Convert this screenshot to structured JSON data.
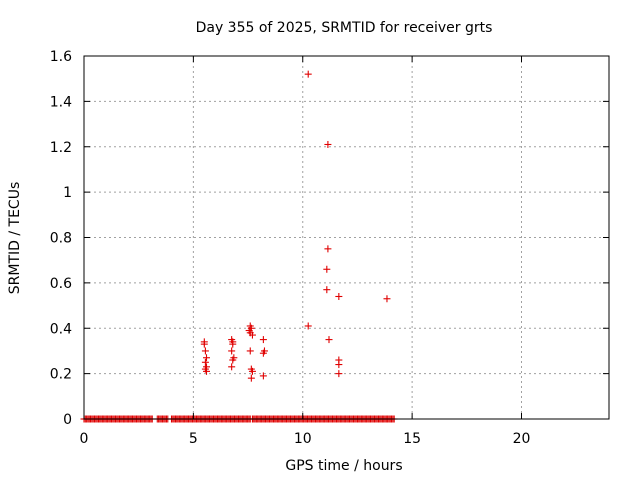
{
  "chart_data": {
    "type": "scatter",
    "title": "Day 355 of 2025, SRMTID for receiver grts",
    "xlabel": "GPS time / hours",
    "ylabel": "SRMTID / TECUs",
    "xlim": [
      0,
      24
    ],
    "ylim": [
      0,
      1.6
    ],
    "xticks": [
      0,
      5,
      10,
      15,
      20
    ],
    "xtick_labels": [
      "0",
      "5",
      "10",
      "15",
      "20"
    ],
    "yticks": [
      0,
      0.2,
      0.4,
      0.6,
      0.8,
      1.0,
      1.2,
      1.4,
      1.6
    ],
    "ytick_labels": [
      "0",
      "0.2",
      "0.4",
      "0.6",
      "0.8",
      "1",
      "1.2",
      "1.4",
      "1.6"
    ],
    "grid": true,
    "marker": "+",
    "color": "#e00000",
    "zero_baseline": {
      "y": 0,
      "segments": [
        [
          0.0,
          3.15
        ],
        [
          3.35,
          3.85
        ],
        [
          4.0,
          7.6
        ],
        [
          7.7,
          14.2
        ]
      ],
      "step": 0.06
    },
    "points": [
      [
        5.5,
        0.34
      ],
      [
        5.5,
        0.33
      ],
      [
        5.55,
        0.3
      ],
      [
        5.6,
        0.27
      ],
      [
        5.55,
        0.25
      ],
      [
        5.6,
        0.23
      ],
      [
        5.55,
        0.22
      ],
      [
        5.6,
        0.21
      ],
      [
        6.75,
        0.35
      ],
      [
        6.8,
        0.34
      ],
      [
        6.8,
        0.33
      ],
      [
        6.75,
        0.3
      ],
      [
        6.85,
        0.27
      ],
      [
        6.8,
        0.26
      ],
      [
        6.75,
        0.23
      ],
      [
        7.6,
        0.41
      ],
      [
        7.65,
        0.4
      ],
      [
        7.55,
        0.39
      ],
      [
        7.6,
        0.38
      ],
      [
        7.7,
        0.37
      ],
      [
        7.6,
        0.3
      ],
      [
        7.65,
        0.22
      ],
      [
        7.7,
        0.21
      ],
      [
        7.65,
        0.18
      ],
      [
        8.2,
        0.35
      ],
      [
        8.25,
        0.3
      ],
      [
        8.2,
        0.29
      ],
      [
        8.2,
        0.19
      ],
      [
        10.25,
        1.52
      ],
      [
        10.25,
        0.41
      ],
      [
        11.15,
        1.21
      ],
      [
        11.15,
        0.75
      ],
      [
        11.1,
        0.66
      ],
      [
        11.1,
        0.57
      ],
      [
        11.2,
        0.35
      ],
      [
        11.65,
        0.54
      ],
      [
        11.65,
        0.26
      ],
      [
        11.65,
        0.24
      ],
      [
        11.65,
        0.2
      ],
      [
        13.85,
        0.53
      ]
    ]
  }
}
